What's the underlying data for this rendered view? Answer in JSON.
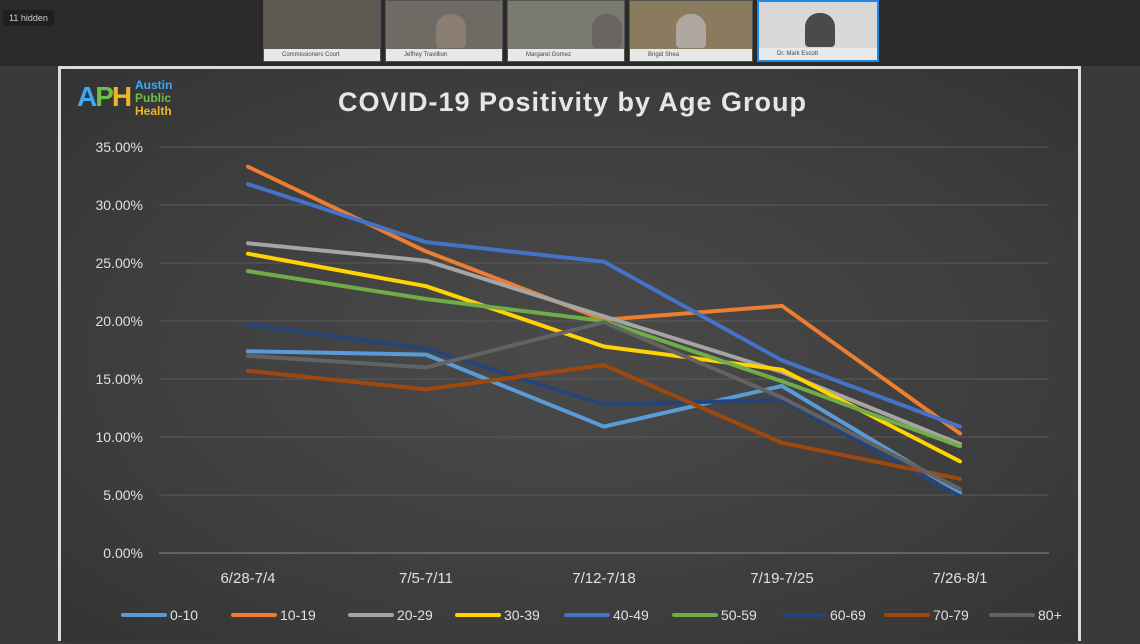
{
  "topbar": {
    "hidden_label": "11 hidden",
    "participants": [
      {
        "name": "Commissioners Court"
      },
      {
        "name": "Jeffrey Travillion"
      },
      {
        "name": "Margaret Gomez"
      },
      {
        "name": "Brigid Shea"
      },
      {
        "name": "Dr. Mark Escott"
      }
    ]
  },
  "logo": {
    "mark": "APH",
    "words": [
      "Austin",
      "Public",
      "Health"
    ],
    "colors": [
      "#3fa9f5",
      "#6cc04a",
      "#f0b429"
    ]
  },
  "chart_data": {
    "type": "line",
    "title": "COVID-19 Positivity by Age Group",
    "xlabel": "",
    "ylabel": "",
    "categories": [
      "6/28-7/4",
      "7/5-7/11",
      "7/12-7/18",
      "7/19-7/25",
      "7/26-8/1"
    ],
    "ylim": [
      0,
      35
    ],
    "yticks": [
      "0.00%",
      "5.00%",
      "10.00%",
      "15.00%",
      "20.00%",
      "25.00%",
      "30.00%",
      "35.00%"
    ],
    "grid": true,
    "legend_position": "bottom",
    "series": [
      {
        "name": "0-10",
        "color": "#5b9bd5",
        "values": [
          17.4,
          17.1,
          10.9,
          14.4,
          5.2
        ]
      },
      {
        "name": "10-19",
        "color": "#ed7d31",
        "values": [
          33.3,
          26.0,
          20.1,
          21.3,
          10.3
        ]
      },
      {
        "name": "20-29",
        "color": "#a5a5a5",
        "values": [
          26.7,
          25.2,
          20.4,
          15.6,
          9.4
        ]
      },
      {
        "name": "30-39",
        "color": "#ffd400",
        "values": [
          25.8,
          23.0,
          17.8,
          15.8,
          7.9
        ]
      },
      {
        "name": "40-49",
        "color": "#4472c4",
        "values": [
          31.8,
          26.8,
          25.1,
          16.6,
          10.9
        ]
      },
      {
        "name": "50-59",
        "color": "#70ad47",
        "values": [
          24.3,
          21.9,
          20.0,
          14.8,
          9.2
        ]
      },
      {
        "name": "60-69",
        "color": "#264478",
        "values": [
          19.7,
          17.6,
          12.8,
          13.2,
          4.9
        ]
      },
      {
        "name": "70-79",
        "color": "#9e480e",
        "values": [
          15.7,
          14.1,
          16.2,
          9.5,
          6.4
        ]
      },
      {
        "name": "80+",
        "color": "#636363",
        "values": [
          17.0,
          16.0,
          19.9,
          13.4,
          5.5
        ]
      }
    ]
  }
}
